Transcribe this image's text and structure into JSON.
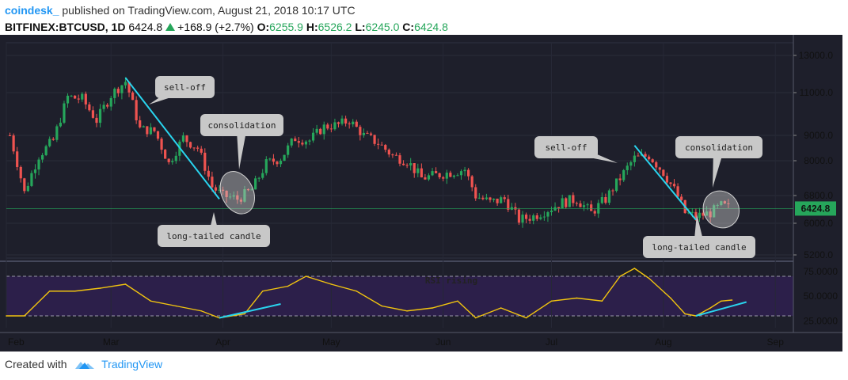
{
  "header": {
    "brand": "coindesk_",
    "published": "published on TradingView.com, August 21, 2018 10:17 UTC",
    "symbol": "BITFINEX:BTCUSD, 1D",
    "last": "6424.8",
    "change": "+168.9 (+2.7%)",
    "o_label": "O:",
    "o_value": "6255.9",
    "h_label": "H:",
    "h_value": "6526.2",
    "l_label": "L:",
    "l_value": "6245.0",
    "c_label": "C:",
    "c_value": "6424.8"
  },
  "footer": {
    "created": "Created with",
    "brand": "TradingView"
  },
  "colors": {
    "up": "#26a65b",
    "down": "#ef5350",
    "rsi": "#f1c40f",
    "trend": "#29d4ee",
    "bg": "#1e1f2b"
  },
  "chart_data": [
    {
      "type": "candlestick",
      "title": "",
      "price_axis_ticks": [
        13000,
        11000,
        9000,
        8000,
        6800,
        6000,
        5200
      ],
      "price_axis_tick_labels": [
        "13000.0",
        "11000.0",
        "9000.0",
        "8000.0",
        "6800.0",
        "6000.0",
        "5200.0"
      ],
      "ylim": [
        4900,
        14000
      ],
      "last_price_label": "6424.8",
      "time_axis_labels": [
        "Feb",
        "Mar",
        "Apr",
        "May",
        "Jun",
        "Jul",
        "Aug",
        "Sep"
      ],
      "close_series": [
        {
          "date": "2018-02-01",
          "close": 9000
        },
        {
          "date": "2018-02-05",
          "close": 6900
        },
        {
          "date": "2018-02-09",
          "close": 8200
        },
        {
          "date": "2018-02-13",
          "close": 8800
        },
        {
          "date": "2018-02-17",
          "close": 10800
        },
        {
          "date": "2018-02-21",
          "close": 10700
        },
        {
          "date": "2018-02-25",
          "close": 9700
        },
        {
          "date": "2018-03-01",
          "close": 10900
        },
        {
          "date": "2018-03-05",
          "close": 11600
        },
        {
          "date": "2018-03-09",
          "close": 9300
        },
        {
          "date": "2018-03-13",
          "close": 9200
        },
        {
          "date": "2018-03-17",
          "close": 7900
        },
        {
          "date": "2018-03-21",
          "close": 8900
        },
        {
          "date": "2018-03-25",
          "close": 8500
        },
        {
          "date": "2018-03-29",
          "close": 7100
        },
        {
          "date": "2018-04-01",
          "close": 6800
        },
        {
          "date": "2018-04-05",
          "close": 6700
        },
        {
          "date": "2018-04-09",
          "close": 7000
        },
        {
          "date": "2018-04-13",
          "close": 7900
        },
        {
          "date": "2018-04-17",
          "close": 8100
        },
        {
          "date": "2018-04-21",
          "close": 8900
        },
        {
          "date": "2018-04-25",
          "close": 8800
        },
        {
          "date": "2018-04-29",
          "close": 9400
        },
        {
          "date": "2018-05-03",
          "close": 9500
        },
        {
          "date": "2018-05-06",
          "close": 9700
        },
        {
          "date": "2018-05-10",
          "close": 9000
        },
        {
          "date": "2018-05-14",
          "close": 8700
        },
        {
          "date": "2018-05-18",
          "close": 8200
        },
        {
          "date": "2018-05-22",
          "close": 8000
        },
        {
          "date": "2018-05-26",
          "close": 7400
        },
        {
          "date": "2018-05-30",
          "close": 7500
        },
        {
          "date": "2018-06-03",
          "close": 7600
        },
        {
          "date": "2018-06-07",
          "close": 7700
        },
        {
          "date": "2018-06-10",
          "close": 6800
        },
        {
          "date": "2018-06-14",
          "close": 6600
        },
        {
          "date": "2018-06-18",
          "close": 6700
        },
        {
          "date": "2018-06-22",
          "close": 6100
        },
        {
          "date": "2018-06-26",
          "close": 6200
        },
        {
          "date": "2018-06-30",
          "close": 6400
        },
        {
          "date": "2018-07-04",
          "close": 6600
        },
        {
          "date": "2018-07-08",
          "close": 6700
        },
        {
          "date": "2018-07-12",
          "close": 6300
        },
        {
          "date": "2018-07-16",
          "close": 6700
        },
        {
          "date": "2018-07-20",
          "close": 7400
        },
        {
          "date": "2018-07-24",
          "close": 8100
        },
        {
          "date": "2018-07-28",
          "close": 8200
        },
        {
          "date": "2018-08-01",
          "close": 7600
        },
        {
          "date": "2018-08-04",
          "close": 7000
        },
        {
          "date": "2018-08-07",
          "close": 6300
        },
        {
          "date": "2018-08-10",
          "close": 6200
        },
        {
          "date": "2018-08-14",
          "close": 6300
        },
        {
          "date": "2018-08-17",
          "close": 6500
        },
        {
          "date": "2018-08-20",
          "close": 6424.8
        }
      ],
      "annotations": [
        {
          "text": "sell-off",
          "type": "callout"
        },
        {
          "text": "consolidation",
          "type": "callout"
        },
        {
          "text": "long-tailed candle",
          "type": "callout"
        },
        {
          "text": "sell-off",
          "type": "callout"
        },
        {
          "text": "consolidation",
          "type": "callout"
        },
        {
          "text": "long-tailed candle",
          "type": "callout"
        }
      ],
      "trendlines": [
        {
          "from": {
            "date": "2018-03-05",
            "price": 11800
          },
          "to": {
            "date": "2018-03-31",
            "price": 6700
          }
        },
        {
          "from": {
            "date": "2018-07-24",
            "price": 8600
          },
          "to": {
            "date": "2018-08-10",
            "price": 6100
          }
        }
      ]
    },
    {
      "type": "line",
      "title": "",
      "series": [
        {
          "name": "",
          "points": [
            {
              "date": "2018-01-31",
              "value": 30
            },
            {
              "date": "2018-02-05",
              "value": 30
            },
            {
              "date": "2018-02-12",
              "value": 55
            },
            {
              "date": "2018-02-19",
              "value": 55
            },
            {
              "date": "2018-02-26",
              "value": 58
            },
            {
              "date": "2018-03-05",
              "value": 62
            },
            {
              "date": "2018-03-12",
              "value": 45
            },
            {
              "date": "2018-03-19",
              "value": 40
            },
            {
              "date": "2018-03-26",
              "value": 35
            },
            {
              "date": "2018-03-31",
              "value": 28
            },
            {
              "date": "2018-04-07",
              "value": 32
            },
            {
              "date": "2018-04-12",
              "value": 55
            },
            {
              "date": "2018-04-19",
              "value": 60
            },
            {
              "date": "2018-04-24",
              "value": 70
            },
            {
              "date": "2018-05-01",
              "value": 62
            },
            {
              "date": "2018-05-08",
              "value": 55
            },
            {
              "date": "2018-05-15",
              "value": 40
            },
            {
              "date": "2018-05-22",
              "value": 35
            },
            {
              "date": "2018-05-29",
              "value": 38
            },
            {
              "date": "2018-06-05",
              "value": 45
            },
            {
              "date": "2018-06-10",
              "value": 28
            },
            {
              "date": "2018-06-17",
              "value": 38
            },
            {
              "date": "2018-06-24",
              "value": 28
            },
            {
              "date": "2018-07-01",
              "value": 45
            },
            {
              "date": "2018-07-08",
              "value": 48
            },
            {
              "date": "2018-07-15",
              "value": 45
            },
            {
              "date": "2018-07-20",
              "value": 70
            },
            {
              "date": "2018-07-24",
              "value": 78
            },
            {
              "date": "2018-07-28",
              "value": 68
            },
            {
              "date": "2018-08-03",
              "value": 48
            },
            {
              "date": "2018-08-07",
              "value": 32
            },
            {
              "date": "2018-08-10",
              "value": 30
            },
            {
              "date": "2018-08-14",
              "value": 38
            },
            {
              "date": "2018-08-17",
              "value": 45
            },
            {
              "date": "2018-08-20",
              "value": 46
            }
          ]
        }
      ],
      "axis_ticks": [
        75,
        50,
        25
      ],
      "axis_tick_labels": [
        "75.0000",
        "50.0000",
        "25.0000"
      ],
      "ylim": [
        18,
        82
      ],
      "band": [
        30,
        70
      ],
      "annotation": "RSI rising",
      "trendlines": [
        {
          "from": {
            "date": "2018-03-31",
            "value": 28
          },
          "to": {
            "date": "2018-04-17",
            "value": 42
          }
        },
        {
          "from": {
            "date": "2018-08-10",
            "value": 30
          },
          "to": {
            "date": "2018-08-24",
            "value": 44
          }
        }
      ]
    }
  ]
}
